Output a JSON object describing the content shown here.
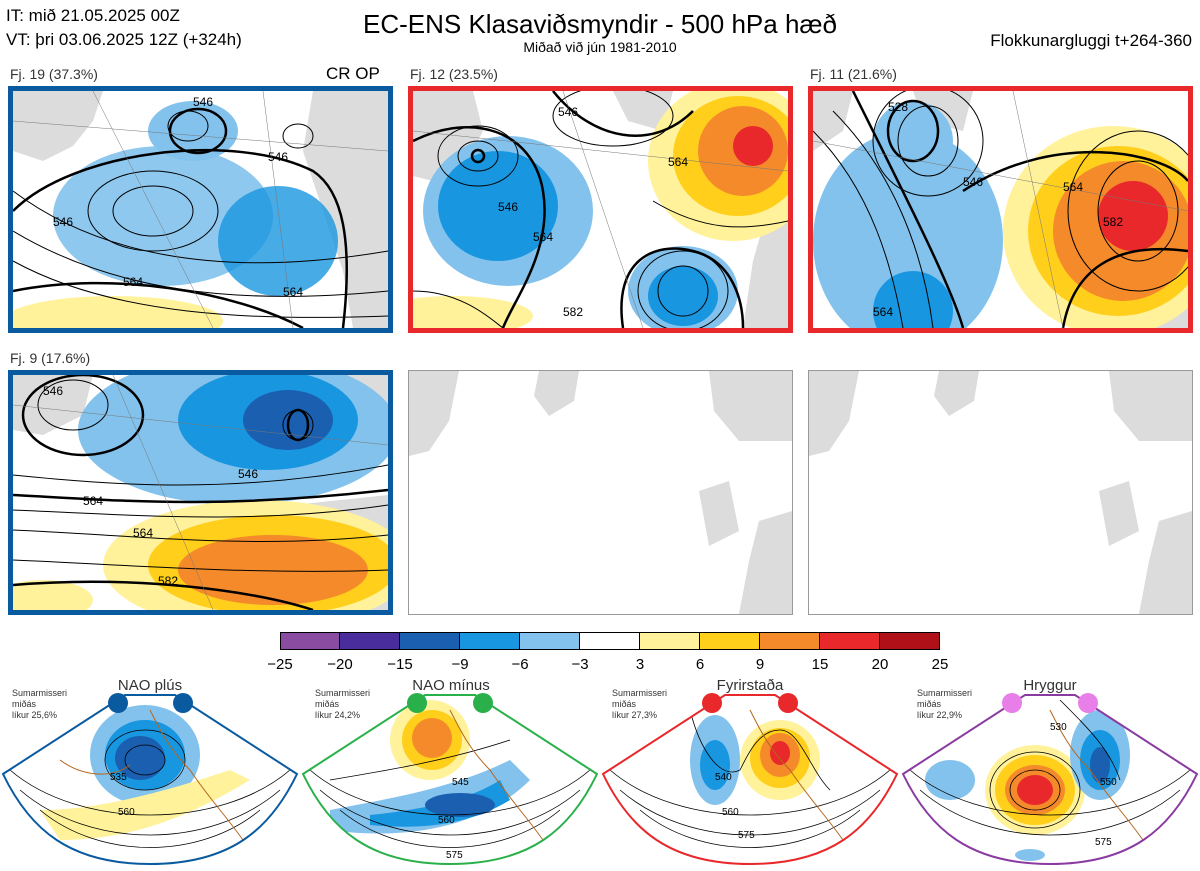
{
  "header": {
    "init_time": "IT: mið 21.05.2025 00Z",
    "valid_time": "VT: þri 03.06.2025 12Z  (+324h)",
    "title": "EC-ENS Klasaviðsmyndir - 500 hPa hæð",
    "subtitle": "Miðað við jún 1981-2010",
    "window": "Flokkunargluggi t+264-360"
  },
  "panels": [
    {
      "label": "Fj. 19 (37.3%)",
      "tag": "CR OP",
      "border": "#0a5aa0",
      "contours": [
        "546",
        "546",
        "546",
        "564",
        "564",
        "546",
        "564"
      ]
    },
    {
      "label": "Fj. 12 (23.5%)",
      "tag": "",
      "border": "#e8282a",
      "contours": [
        "546",
        "564",
        "546",
        "564",
        "582"
      ]
    },
    {
      "label": "Fj. 11 (21.6%)",
      "tag": "",
      "border": "#e8282a",
      "contours": [
        "528",
        "546",
        "564",
        "582",
        "564"
      ]
    },
    {
      "label": "Fj. 9 (17.6%)",
      "tag": "",
      "border": "#0a5aa0",
      "contours": [
        "546",
        "546",
        "564",
        "564",
        "582"
      ]
    }
  ],
  "colorbar": {
    "ticks": [
      "−25",
      "−20",
      "−15",
      "−9",
      "−6",
      "−3",
      "3",
      "6",
      "9",
      "15",
      "20",
      "25"
    ],
    "colors": [
      "#8a4ca0",
      "#4a2d9c",
      "#1a5fb0",
      "#1996e0",
      "#82c2ec",
      "#ffffff",
      "#fff29a",
      "#ffcf1c",
      "#f58a2a",
      "#e8282a",
      "#b01017"
    ]
  },
  "regimes": [
    {
      "name": "NAO plús",
      "season": "Sumarmisseri",
      "stat": "miðás",
      "likelihood": "líkur 25,6%",
      "dot_color": "#0a5aa0",
      "border": "#0a5aa0",
      "contours": [
        "535",
        "560"
      ]
    },
    {
      "name": "NAO mínus",
      "season": "Sumarmisseri",
      "stat": "miðás",
      "likelihood": "líkur 24,2%",
      "dot_color": "#2ab04a",
      "border": "#2ab04a",
      "contours": [
        "545",
        "560",
        "575"
      ]
    },
    {
      "name": "Fyrirstaða",
      "season": "Sumarmisseri",
      "stat": "miðás",
      "likelihood": "líkur 27,3%",
      "dot_color": "#e8282a",
      "border": "#e8282a",
      "contours": [
        "540",
        "560",
        "575"
      ]
    },
    {
      "name": "Hryggur",
      "season": "Sumarmisseri",
      "stat": "miðás",
      "likelihood": "líkur 22,9%",
      "dot_color": "#e87ee8",
      "border": "#8a3aa0",
      "contours": [
        "530",
        "550",
        "575"
      ]
    }
  ]
}
